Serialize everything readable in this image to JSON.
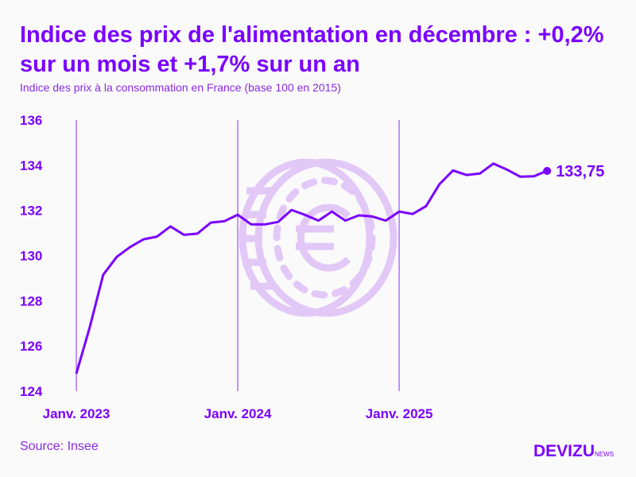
{
  "header": {
    "title": "Indice des prix de l'alimentation en décembre : +0,2% sur un mois et +1,7% sur un an",
    "subtitle": "Indice des prix à la consommation en France (base 100 en 2015)"
  },
  "footer": {
    "source": "Source: Insee",
    "logo": "DEVIZU",
    "logo_suffix": "NEWS"
  },
  "colors": {
    "line": "#7a00ff",
    "gridline": "#b070ff",
    "watermark": "#e2c8f7"
  },
  "watermark_icon": "euro-coin-icon",
  "chart_data": {
    "type": "line",
    "title": "Indice des prix de l'alimentation en décembre : +0,2% sur un mois et +1,7% sur un an",
    "subtitle": "Indice des prix à la consommation en France (base 100 en 2015)",
    "ylim": [
      124,
      136
    ],
    "yticks": [
      "124",
      "126",
      "128",
      "130",
      "132",
      "134",
      "136"
    ],
    "xticks": [
      {
        "label": "Janv. 2023",
        "month": "2023-01"
      },
      {
        "label": "Janv. 2024",
        "month": "2024-01"
      },
      {
        "label": "Janv. 2025",
        "month": "2025-01"
      }
    ],
    "x_start": "2023-01",
    "x_end": "2025-12",
    "values": [
      124.77,
      126.83,
      129.15,
      129.94,
      130.38,
      130.72,
      130.84,
      131.29,
      130.92,
      130.97,
      131.46,
      131.52,
      131.81,
      131.38,
      131.38,
      131.49,
      132.02,
      131.8,
      131.55,
      131.95,
      131.55,
      131.78,
      131.73,
      131.55,
      131.95,
      131.84,
      132.19,
      133.16,
      133.77,
      133.57,
      133.63,
      134.07,
      133.81,
      133.49,
      133.51,
      133.75
    ],
    "last_label": "133,75",
    "grid": "vertical lines at January"
  }
}
